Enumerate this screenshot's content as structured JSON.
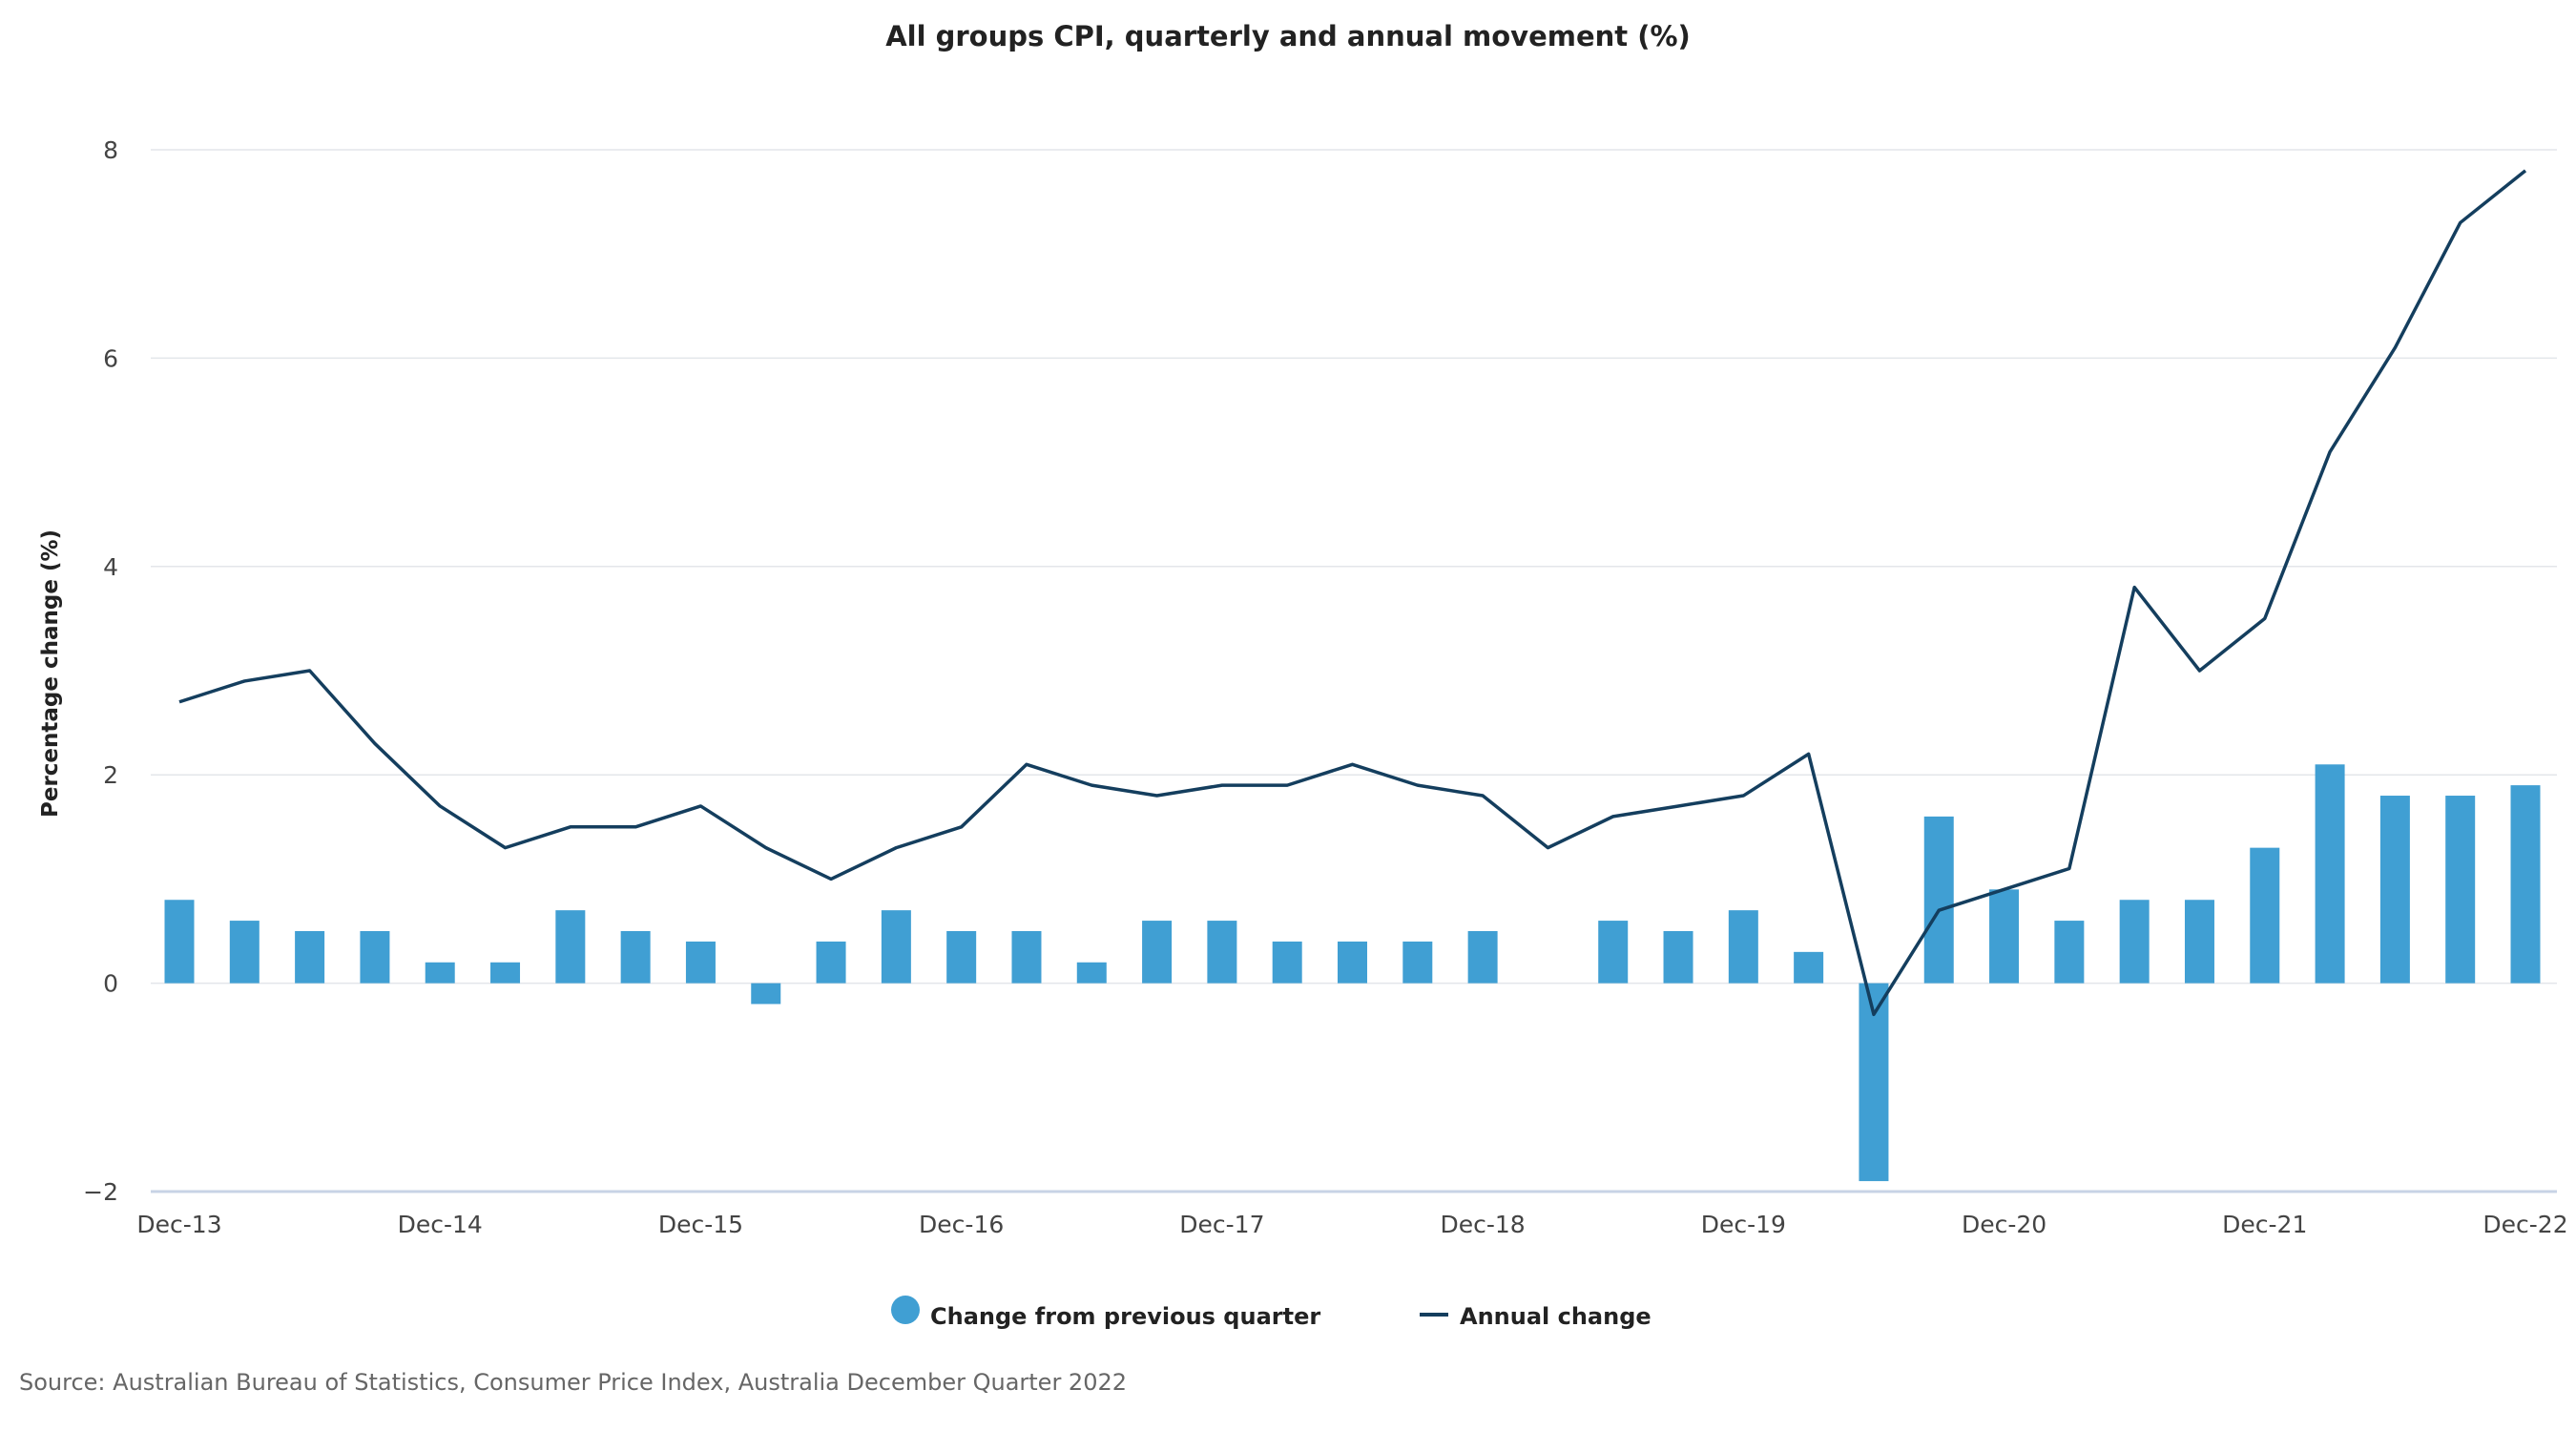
{
  "chart_data": {
    "type": "bar+line",
    "title": "All groups CPI, quarterly and annual movement (%)",
    "xlabel": "",
    "ylabel": "Percentage change (%)",
    "ylim": [
      -2,
      8
    ],
    "yticks": [
      -2,
      0,
      2,
      4,
      6,
      8
    ],
    "ytick_labels": [
      "−2",
      "0",
      "2",
      "4",
      "6",
      "8"
    ],
    "grid": "horizontal",
    "legend_placement": "bottom",
    "categories": [
      "Dec-13",
      "Mar-14",
      "Jun-14",
      "Sep-14",
      "Dec-14",
      "Mar-15",
      "Jun-15",
      "Sep-15",
      "Dec-15",
      "Mar-16",
      "Jun-16",
      "Sep-16",
      "Dec-16",
      "Mar-17",
      "Jun-17",
      "Sep-17",
      "Dec-17",
      "Mar-18",
      "Jun-18",
      "Sep-18",
      "Dec-18",
      "Mar-19",
      "Jun-19",
      "Sep-19",
      "Dec-19",
      "Mar-20",
      "Jun-20",
      "Sep-20",
      "Dec-20",
      "Mar-21",
      "Jun-21",
      "Sep-21",
      "Dec-21",
      "Mar-22",
      "Jun-22",
      "Sep-22",
      "Dec-22"
    ],
    "xtick_labels": [
      "Dec-13",
      "Dec-14",
      "Dec-15",
      "Dec-16",
      "Dec-17",
      "Dec-18",
      "Dec-19",
      "Dec-20",
      "Dec-21",
      "Dec-22"
    ],
    "series": [
      {
        "name": "Change from previous quarter",
        "type": "bar",
        "color": "#409fd3",
        "values": [
          0.8,
          0.6,
          0.5,
          0.5,
          0.2,
          0.2,
          0.7,
          0.5,
          0.4,
          -0.2,
          0.4,
          0.7,
          0.5,
          0.5,
          0.2,
          0.6,
          0.6,
          0.4,
          0.4,
          0.4,
          0.5,
          0.0,
          0.6,
          0.5,
          0.7,
          0.3,
          -1.9,
          1.6,
          0.9,
          0.6,
          0.8,
          0.8,
          1.3,
          2.1,
          1.8,
          1.8,
          1.9
        ]
      },
      {
        "name": "Annual change",
        "type": "line",
        "color": "#143e5e",
        "values": [
          2.7,
          2.9,
          3.0,
          2.3,
          1.7,
          1.3,
          1.5,
          1.5,
          1.7,
          1.3,
          1.0,
          1.3,
          1.5,
          2.1,
          1.9,
          1.8,
          1.9,
          1.9,
          2.1,
          1.9,
          1.8,
          1.3,
          1.6,
          1.7,
          1.8,
          2.2,
          -0.3,
          0.7,
          0.9,
          1.1,
          3.8,
          3.0,
          3.5,
          5.1,
          6.1,
          7.3,
          7.8
        ]
      }
    ],
    "source": "Source: Australian Bureau of Statistics, Consumer Price Index, Australia December Quarter 2022"
  }
}
